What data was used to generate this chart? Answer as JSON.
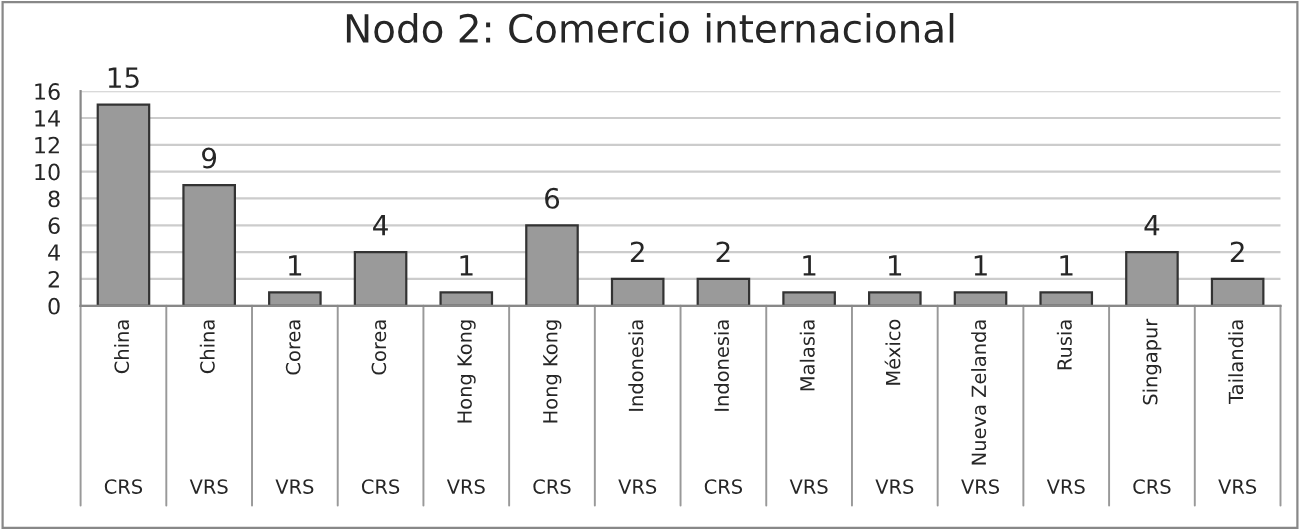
{
  "chart_data": {
    "type": "bar",
    "title": "Nodo 2: Comercio internacional",
    "categories": [
      "China",
      "China",
      "Corea",
      "Corea",
      "Hong Kong",
      "Hong Kong",
      "Indonesia",
      "Indonesia",
      "Malasia",
      "México",
      "Nueva Zelanda",
      "Rusia",
      "Singapur",
      "Tailandia"
    ],
    "values": [
      15,
      9,
      1,
      4,
      1,
      6,
      2,
      2,
      1,
      1,
      1,
      1,
      4,
      2
    ],
    "annotations": [
      "CRS",
      "VRS",
      "VRS",
      "CRS",
      "VRS",
      "CRS",
      "VRS",
      "CRS",
      "VRS",
      "VRS",
      "VRS",
      "VRS",
      "CRS",
      "VRS"
    ],
    "color": "#9a9a9a",
    "ylim": [
      0,
      16
    ],
    "yticks": [
      0,
      2,
      4,
      6,
      8,
      10,
      12,
      14,
      16
    ],
    "grid": "y",
    "data_labels": true
  }
}
